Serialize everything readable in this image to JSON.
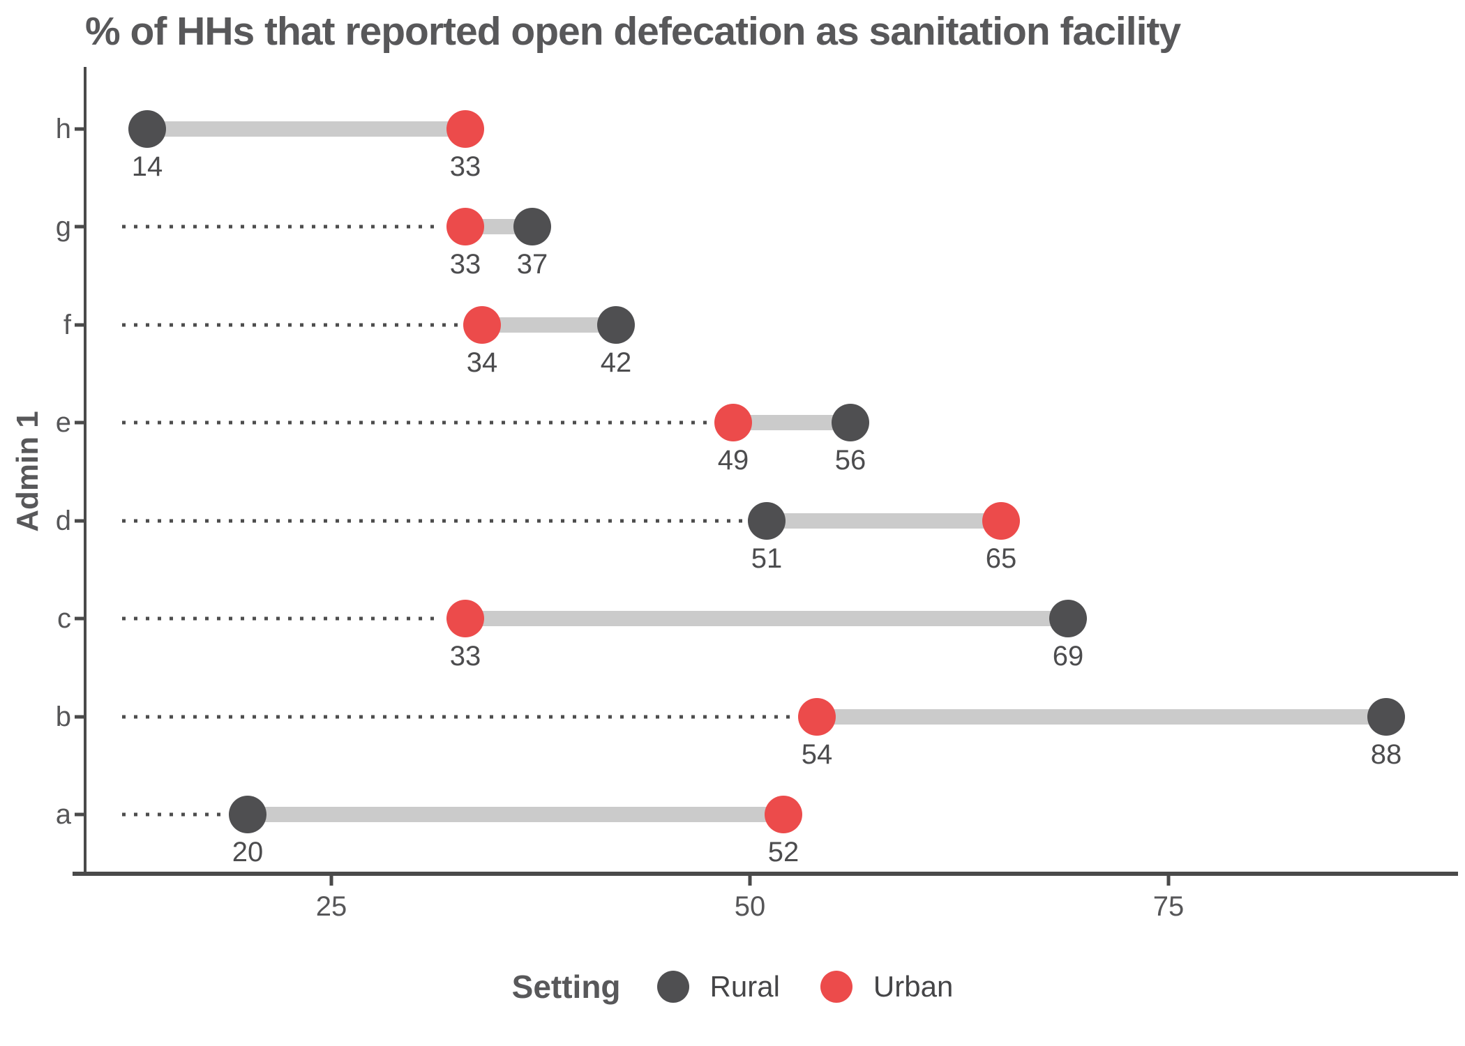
{
  "title": "% of HHs that reported open defecation as sanitation facility",
  "y_axis_label": "Admin 1",
  "legend": {
    "title": "Setting",
    "items": [
      {
        "label": "Rural",
        "color": "#4f4f51"
      },
      {
        "label": "Urban",
        "color": "#ec4b4b"
      }
    ]
  },
  "colors": {
    "rural": "#4f4f51",
    "urban": "#ec4b4b",
    "connector_bar": "#cbcbcb",
    "leader_dots": "#4d4d4d",
    "axis": "#4a4a4a",
    "text": "#58585a"
  },
  "chart_data": {
    "type": "dumbbell",
    "orientation": "horizontal",
    "categories": [
      "h",
      "g",
      "f",
      "e",
      "d",
      "c",
      "b",
      "a"
    ],
    "series": [
      {
        "name": "Rural",
        "color": "#4f4f51",
        "values": [
          14,
          37,
          42,
          56,
          51,
          69,
          88,
          20
        ]
      },
      {
        "name": "Urban",
        "color": "#ec4b4b",
        "values": [
          33,
          33,
          34,
          49,
          65,
          33,
          54,
          52
        ]
      }
    ],
    "point_labels_shown": true,
    "x_ticks": [
      "25",
      "50",
      "75"
    ],
    "x_tick_values": [
      25,
      50,
      75
    ],
    "xlim": [
      10.3,
      92.1
    ],
    "grid": "none",
    "leader_lines": "dotted from axis to nearest point (all rows except h)",
    "legend_position": "bottom",
    "title": "% of HHs that reported open defecation as sanitation facility",
    "ylabel": "Admin 1",
    "xlabel": ""
  }
}
